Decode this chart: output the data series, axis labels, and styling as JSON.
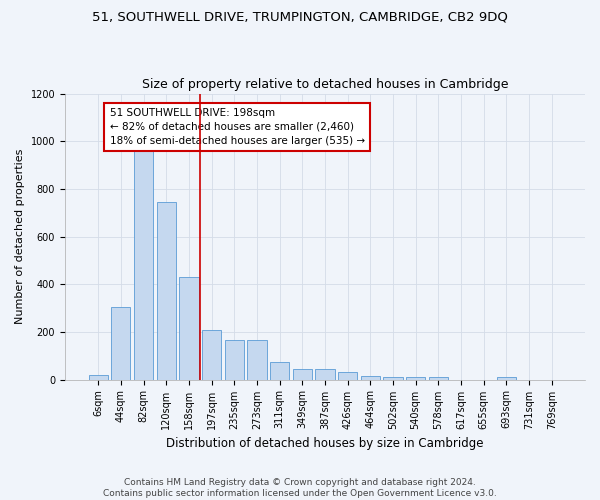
{
  "title1": "51, SOUTHWELL DRIVE, TRUMPINGTON, CAMBRIDGE, CB2 9DQ",
  "title2": "Size of property relative to detached houses in Cambridge",
  "xlabel": "Distribution of detached houses by size in Cambridge",
  "ylabel": "Number of detached properties",
  "bar_labels": [
    "6sqm",
    "44sqm",
    "82sqm",
    "120sqm",
    "158sqm",
    "197sqm",
    "235sqm",
    "273sqm",
    "311sqm",
    "349sqm",
    "387sqm",
    "426sqm",
    "464sqm",
    "502sqm",
    "540sqm",
    "578sqm",
    "617sqm",
    "655sqm",
    "693sqm",
    "731sqm",
    "769sqm"
  ],
  "bar_values": [
    20,
    305,
    970,
    745,
    430,
    210,
    165,
    165,
    75,
    45,
    45,
    30,
    15,
    10,
    10,
    10,
    0,
    0,
    10,
    0,
    0
  ],
  "bar_color": "#c5d8ef",
  "bar_edge_color": "#5b9bd5",
  "vline_x_index": 5,
  "vline_color": "#cc0000",
  "ylim": [
    0,
    1200
  ],
  "yticks": [
    0,
    200,
    400,
    600,
    800,
    1000,
    1200
  ],
  "grid_color": "#d4dce8",
  "annotation_text": "51 SOUTHWELL DRIVE: 198sqm\n← 82% of detached houses are smaller (2,460)\n18% of semi-detached houses are larger (535) →",
  "annotation_box_color": "#ffffff",
  "annotation_box_edge_color": "#cc0000",
  "footer1": "Contains HM Land Registry data © Crown copyright and database right 2024.",
  "footer2": "Contains public sector information licensed under the Open Government Licence v3.0.",
  "bg_color": "#f0f4fa",
  "title1_fontsize": 9.5,
  "title2_fontsize": 9,
  "xlabel_fontsize": 8.5,
  "ylabel_fontsize": 8,
  "tick_fontsize": 7,
  "annotation_fontsize": 7.5,
  "footer_fontsize": 6.5
}
